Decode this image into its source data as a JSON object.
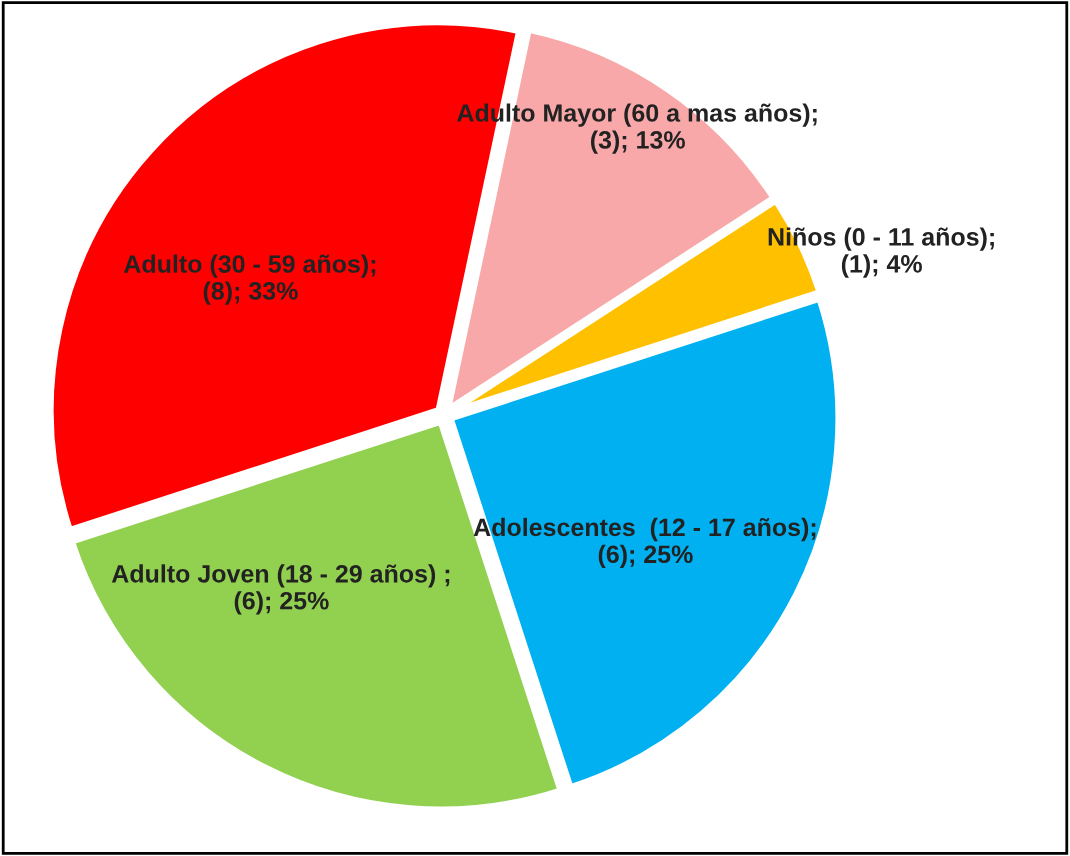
{
  "chart_data": {
    "type": "pie",
    "categories": [
      "Adulto Mayor (60 a mas años)",
      "Niños (0 - 11 años)",
      "Adolescentes  (12 - 17 años)",
      "Adulto Joven (18 - 29 años)",
      "Adulto (30 - 59 años)"
    ],
    "values": [
      3,
      1,
      6,
      6,
      8
    ],
    "value_labels": [
      ";\n(3); 13%",
      ";\n(1); 4%",
      ";\n(6); 25%",
      " ;\n(6); 25%",
      ";\n(8); 33%"
    ],
    "colors": [
      "#f8a8a8",
      "#ffc000",
      "#00b0f0",
      "#92d050",
      "#ff0000"
    ]
  }
}
